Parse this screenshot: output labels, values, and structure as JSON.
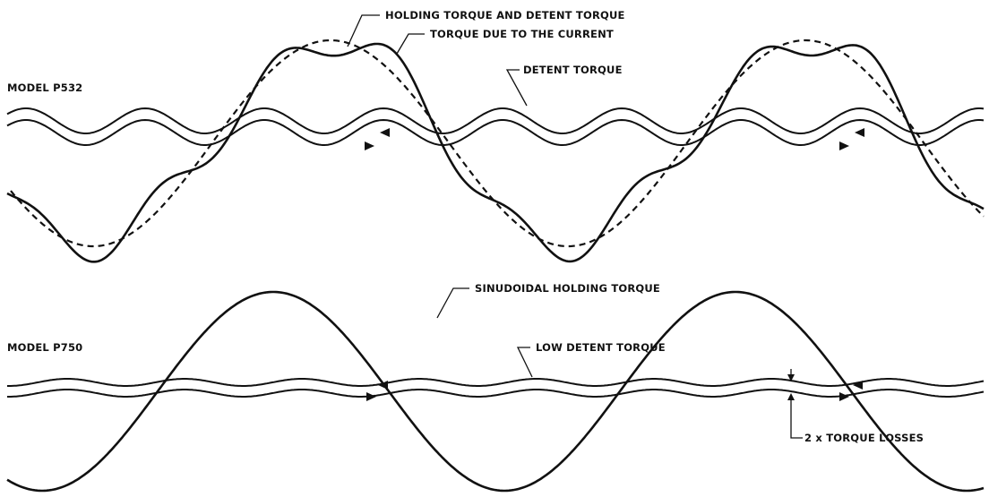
{
  "top_panel": {
    "model_label": "MODEL P532",
    "labels": {
      "holding_and_detent": "HOLDING TORQUE AND DETENT TORQUE",
      "current_torque": "TORQUE DUE TO THE CURRENT",
      "detent": "DETENT TORQUE"
    }
  },
  "bottom_panel": {
    "model_label": "MODEL P750",
    "labels": {
      "sinusoidal_holding": "SINUDOIDAL HOLDING TORQUE",
      "low_detent": "LOW DETENT TORQUE",
      "torque_losses": "2 x TORQUE LOSSES"
    }
  },
  "colors": {
    "ink": "#111111",
    "background": "#ffffff"
  },
  "icons": [
    "arrow-left-icon",
    "arrow-right-icon",
    "dimension-arrow-icon"
  ]
}
